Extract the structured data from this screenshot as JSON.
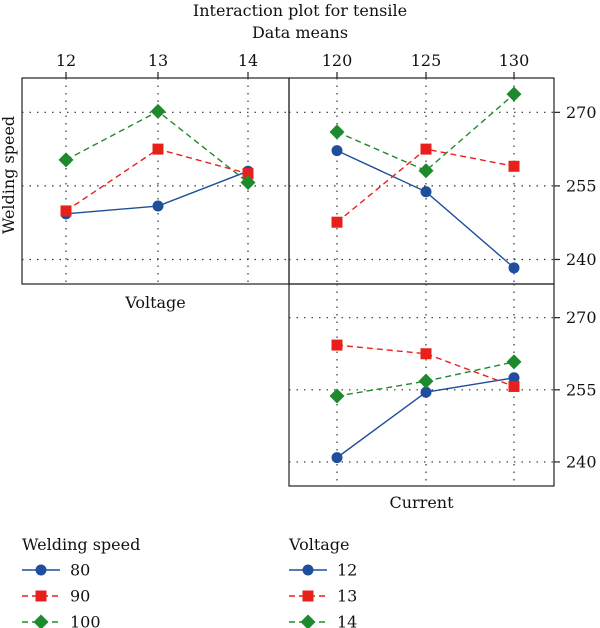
{
  "title": "Interaction plot for tensile",
  "subtitle": "Data means",
  "colors": {
    "s1": "#1f4e9c",
    "s2": "#e8201c",
    "s3": "#1e8a2e",
    "frame": "#222222",
    "grid": "#333333"
  },
  "chart_data": [
    {
      "type": "line",
      "panel": "voltage-by-speed",
      "xlabel": "Voltage",
      "ylabel": "Welding speed",
      "x": [
        12,
        13,
        14
      ],
      "ylim": [
        235,
        277
      ],
      "yticks": [
        240,
        255,
        270
      ],
      "grid": true,
      "series": [
        {
          "name": "80",
          "values": [
            249.3,
            250.9,
            258.0
          ],
          "marker": "circle"
        },
        {
          "name": "90",
          "values": [
            249.9,
            262.5,
            257.5
          ],
          "marker": "square"
        },
        {
          "name": "100",
          "values": [
            260.3,
            270.2,
            255.7
          ],
          "marker": "diamond"
        }
      ]
    },
    {
      "type": "line",
      "panel": "current-by-speed",
      "xlabel": "",
      "x": [
        120,
        125,
        130
      ],
      "ylim": [
        235,
        277
      ],
      "yticks": [
        240,
        255,
        270
      ],
      "grid": true,
      "series": [
        {
          "name": "80",
          "values": [
            262.2,
            253.8,
            238.3
          ],
          "marker": "circle"
        },
        {
          "name": "90",
          "values": [
            247.6,
            262.5,
            259.0
          ],
          "marker": "square"
        },
        {
          "name": "100",
          "values": [
            266.0,
            258.1,
            273.7
          ],
          "marker": "diamond"
        }
      ]
    },
    {
      "type": "line",
      "panel": "current-by-voltage",
      "xlabel": "Current",
      "x": [
        120,
        125,
        130
      ],
      "ylim": [
        235,
        277
      ],
      "yticks": [
        240,
        255,
        270
      ],
      "grid": true,
      "series": [
        {
          "name": "12",
          "values": [
            240.9,
            254.5,
            257.5
          ],
          "marker": "circle"
        },
        {
          "name": "13",
          "values": [
            264.3,
            262.5,
            255.7
          ],
          "marker": "square"
        },
        {
          "name": "14",
          "values": [
            253.7,
            256.8,
            260.8
          ],
          "marker": "diamond"
        }
      ]
    }
  ],
  "legends": [
    {
      "title": "Welding speed",
      "items": [
        "80",
        "90",
        "100"
      ]
    },
    {
      "title": "Voltage",
      "items": [
        "12",
        "13",
        "14"
      ]
    }
  ]
}
